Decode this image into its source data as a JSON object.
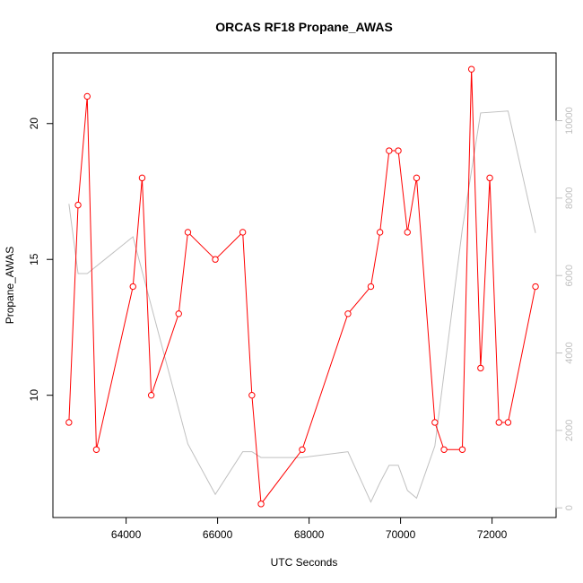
{
  "chart_data": {
    "type": "line",
    "title": "ORCAS RF18 Propane_AWAS",
    "xlabel": "UTC Seconds",
    "ylabel": "Propane_AWAS",
    "xlim": [
      62400,
      73400
    ],
    "ylim": [
      5.5,
      22.6
    ],
    "y2lim": [
      -250,
      11750
    ],
    "x_ticks": [
      "64000",
      "66000",
      "68000",
      "70000",
      "72000"
    ],
    "y_ticks": [
      "10",
      "15",
      "20"
    ],
    "y2_ticks": [
      "0",
      "2000",
      "4000",
      "6000",
      "8000",
      "10000"
    ],
    "colors": {
      "primary": "#ff0000",
      "secondary": "#c0c0c0"
    },
    "series": [
      {
        "axis": "left",
        "style": "line+points",
        "points": [
          [
            62750,
            9
          ],
          [
            62950,
            17
          ],
          [
            63150,
            21
          ],
          [
            63350,
            8
          ],
          [
            64150,
            14
          ],
          [
            64350,
            18
          ],
          [
            64550,
            10
          ],
          [
            65150,
            13
          ],
          [
            65350,
            16
          ],
          [
            65950,
            15
          ],
          [
            66550,
            16
          ],
          [
            66750,
            10
          ],
          [
            66950,
            6
          ],
          [
            67850,
            8
          ],
          [
            68850,
            13
          ],
          [
            69350,
            14
          ],
          [
            69550,
            16
          ],
          [
            69750,
            19
          ],
          [
            69950,
            19
          ],
          [
            70150,
            16
          ],
          [
            70350,
            18
          ],
          [
            70750,
            9
          ],
          [
            70950,
            8
          ],
          [
            71350,
            8
          ],
          [
            71550,
            22
          ],
          [
            71750,
            11
          ],
          [
            71950,
            18
          ],
          [
            72150,
            9
          ],
          [
            72350,
            9
          ],
          [
            72950,
            14
          ]
        ]
      },
      {
        "axis": "right",
        "style": "line",
        "points": [
          [
            62750,
            7850
          ],
          [
            62950,
            6050
          ],
          [
            63150,
            6050
          ],
          [
            64150,
            7000
          ],
          [
            65350,
            1650
          ],
          [
            65950,
            350
          ],
          [
            66550,
            1450
          ],
          [
            66750,
            1450
          ],
          [
            66950,
            1300
          ],
          [
            67850,
            1300
          ],
          [
            68850,
            1450
          ],
          [
            69350,
            150
          ],
          [
            69550,
            650
          ],
          [
            69750,
            1100
          ],
          [
            69950,
            1100
          ],
          [
            70150,
            450
          ],
          [
            70350,
            250
          ],
          [
            70750,
            1600
          ],
          [
            71350,
            7200
          ],
          [
            71750,
            10200
          ],
          [
            72350,
            10250
          ],
          [
            72950,
            7100
          ]
        ]
      }
    ]
  }
}
